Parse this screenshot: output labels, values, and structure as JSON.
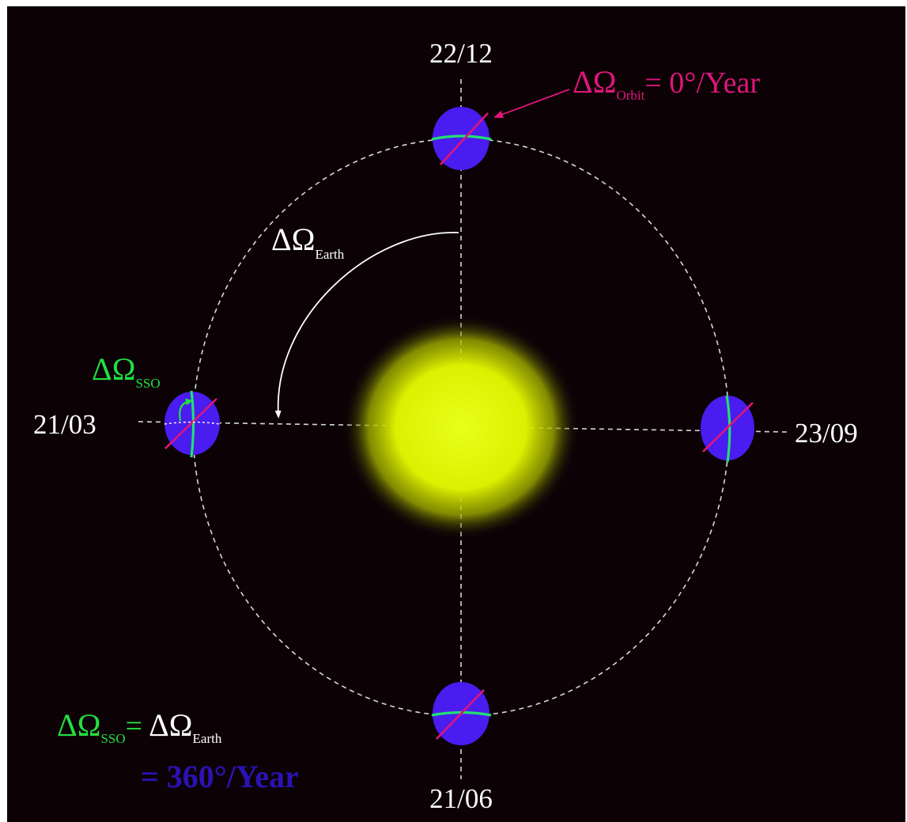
{
  "dates": {
    "top": "22/12",
    "right": "23/09",
    "bottom": "21/06",
    "left": "21/03"
  },
  "orbit_label": {
    "symbol": "ΔΩ",
    "subscript": "Orbit",
    "rest": "= 0°/Year"
  },
  "earth_label": {
    "symbol": "ΔΩ",
    "subscript": "Earth"
  },
  "sso_label": {
    "symbol": "ΔΩ",
    "subscript": "SSO"
  },
  "equation": {
    "lhs_symbol": "ΔΩ",
    "lhs_subscript": "SSO",
    "equals": "=",
    "rhs_symbol": "ΔΩ",
    "rhs_subscript": "Earth",
    "line2": "= 360°/Year"
  },
  "colors": {
    "background": "#0c0206",
    "frame": "#ffffff",
    "sun": "#e6ff00",
    "earth": "#4a1cf0",
    "orbit_ring": "#d8d8d8",
    "equator": "#22e070",
    "orbit_plane": "#e0157a",
    "magenta_label": "#e0157a",
    "green_label": "#22e040",
    "blue_label": "#2a12b4"
  }
}
